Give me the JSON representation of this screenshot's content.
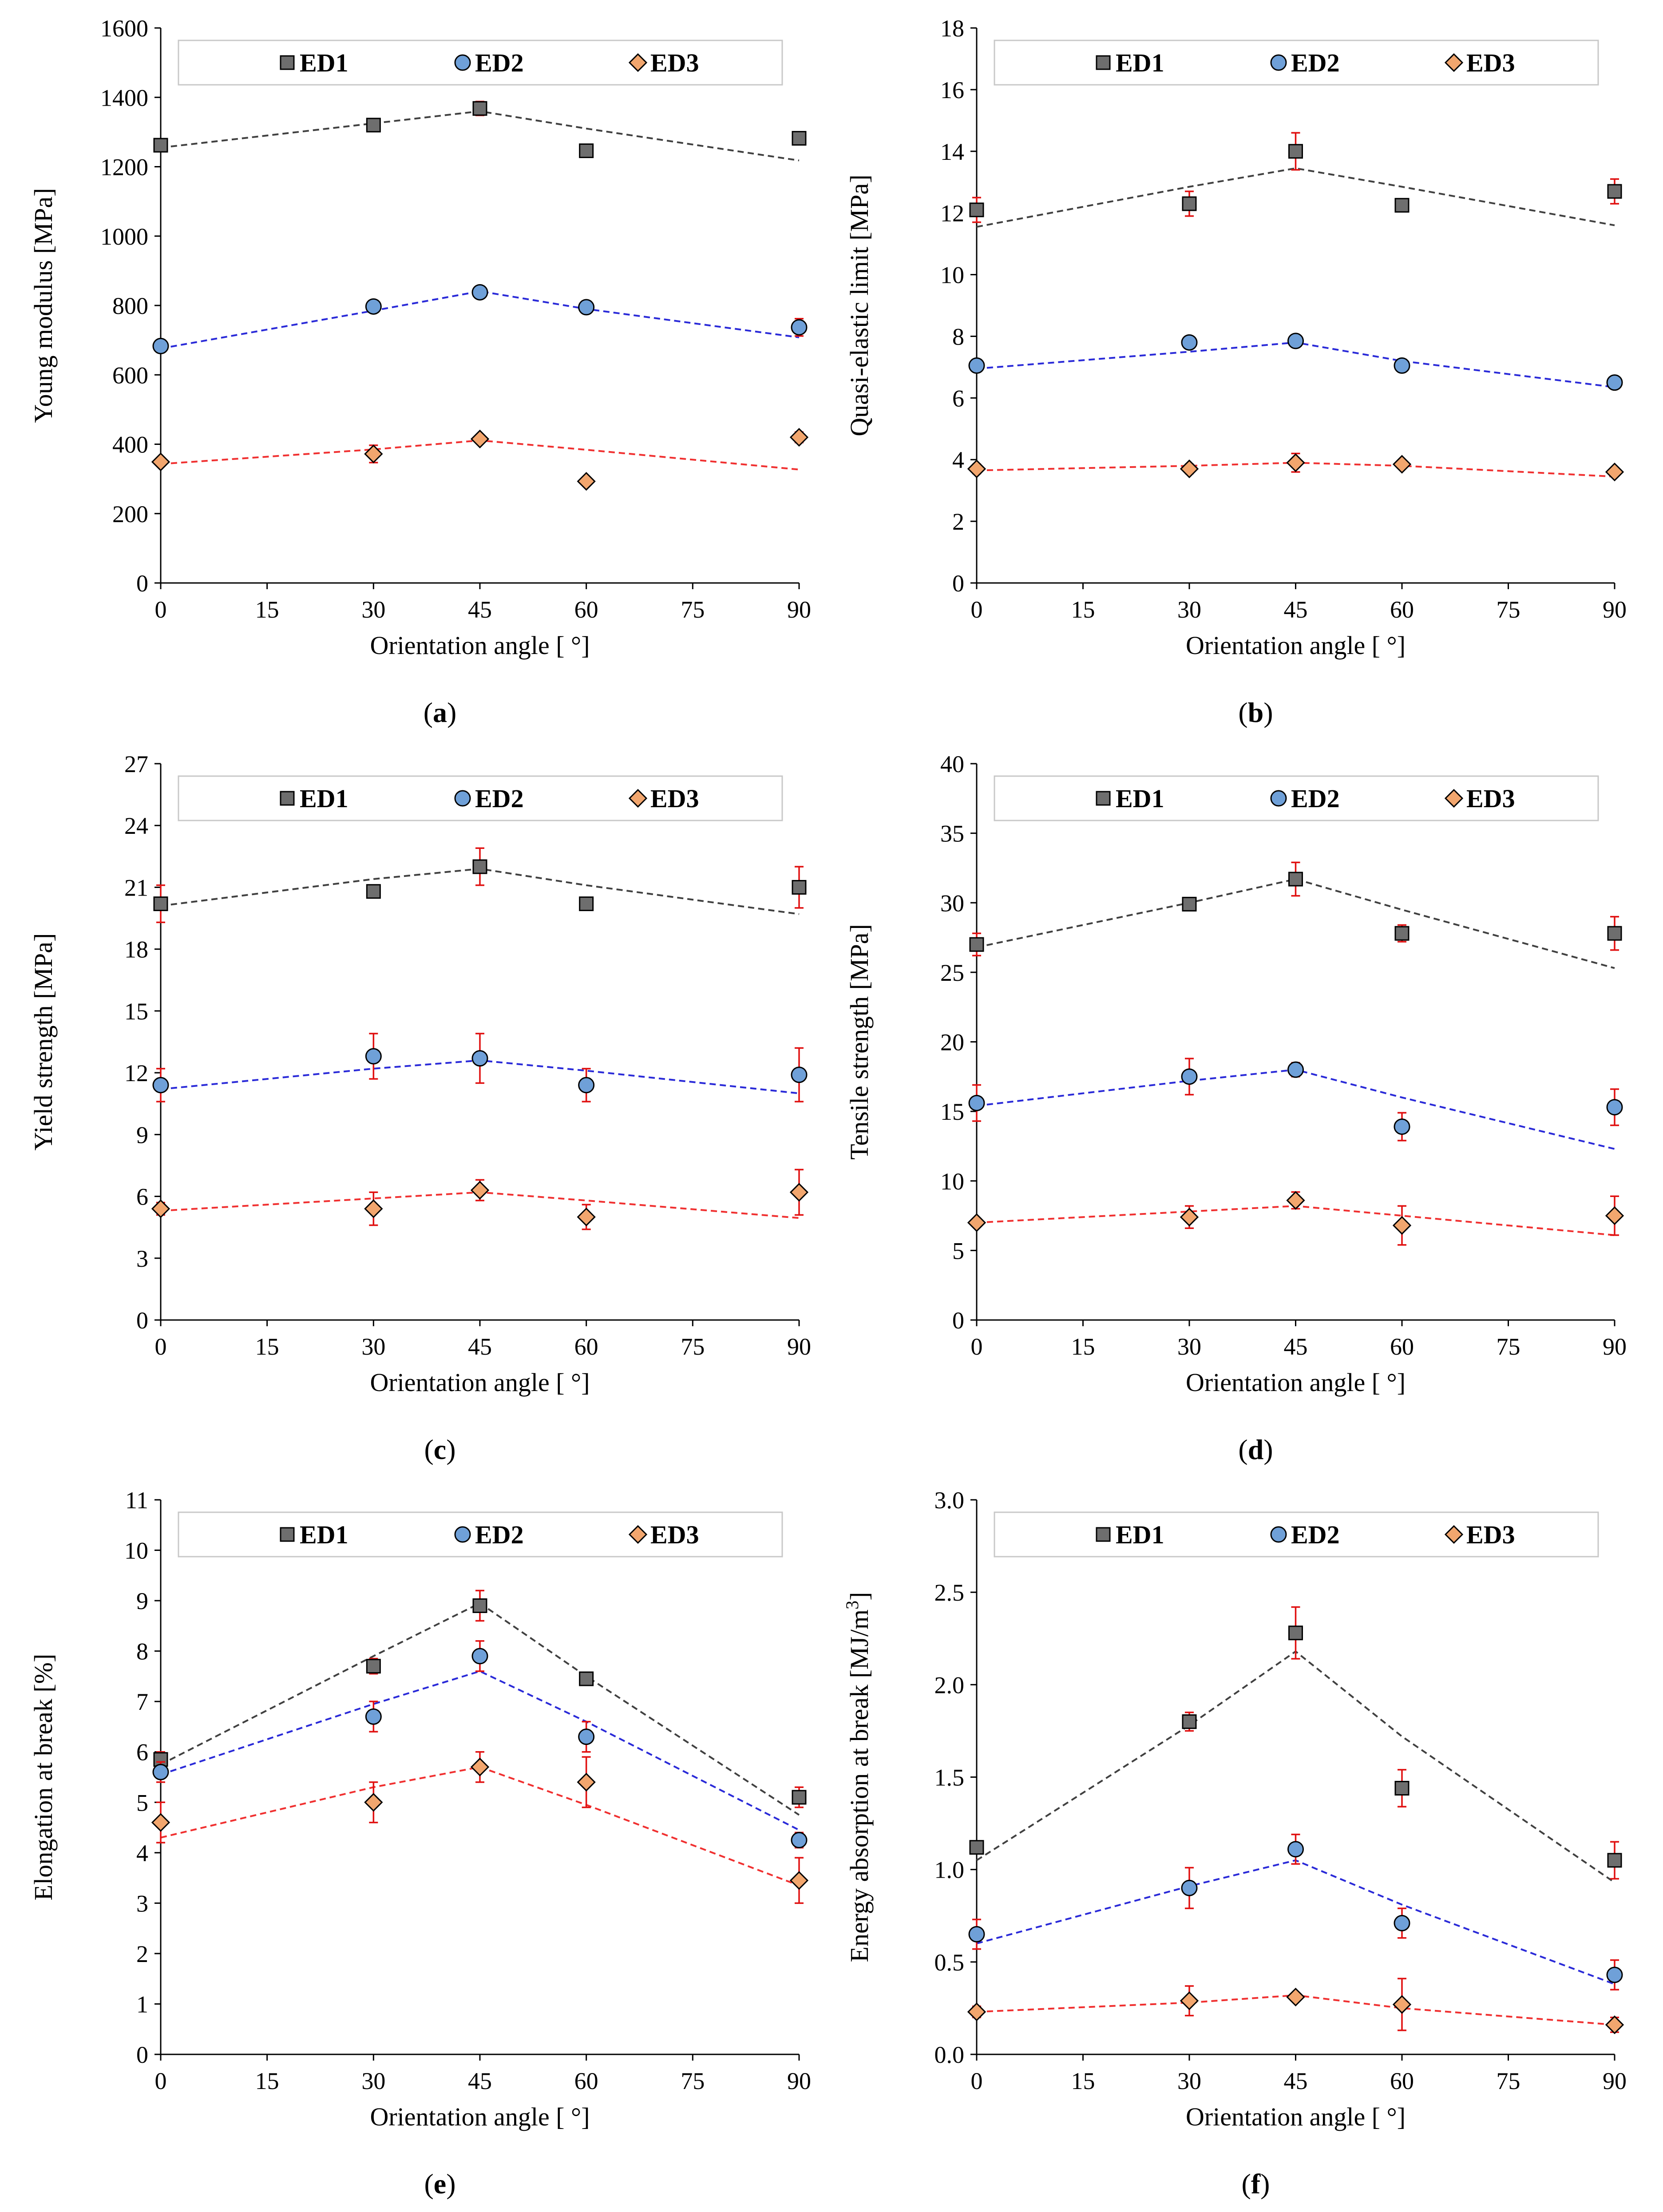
{
  "colors": {
    "ED1": {
      "fill": "#6e6e6e",
      "line": "#404040"
    },
    "ED2": {
      "fill": "#6fa0d8",
      "line": "#2a2ad8"
    },
    "ED3": {
      "fill": "#f2a66e",
      "line": "#f03030"
    },
    "error_bar": "#e01010"
  },
  "chart_data": [
    {
      "id": "a",
      "type": "scatter",
      "caption": "(a)",
      "xlabel": "Orientation angle [ °]",
      "ylabel": "Young modulus [MPa]",
      "xlim": [
        0,
        90
      ],
      "ylim": [
        0,
        1600
      ],
      "xticks": [
        0,
        15,
        30,
        45,
        60,
        75,
        90
      ],
      "yticks": [
        0,
        200,
        400,
        600,
        800,
        1000,
        1200,
        1400,
        1600
      ],
      "ytick_labels": [
        "0",
        "200",
        "400",
        "600",
        "800",
        "1000",
        "1200",
        "1400",
        "1600"
      ],
      "x": [
        0,
        30,
        45,
        60,
        90
      ],
      "series": [
        {
          "name": "ED1",
          "values": [
            1262,
            1320,
            1368,
            1246,
            1282
          ],
          "errors": [
            10,
            15,
            20,
            10,
            12
          ],
          "trend": [
            1255,
            1325,
            1360,
            1310,
            1218
          ]
        },
        {
          "name": "ED2",
          "values": [
            683,
            797,
            838,
            795,
            737
          ],
          "errors": [
            10,
            10,
            15,
            10,
            25
          ],
          "trend": [
            676,
            785,
            841,
            790,
            708
          ]
        },
        {
          "name": "ED3",
          "values": [
            349,
            372,
            415,
            293,
            420
          ],
          "errors": [
            10,
            25,
            10,
            5,
            15
          ],
          "trend": [
            343,
            385,
            411,
            384,
            327
          ]
        }
      ]
    },
    {
      "id": "b",
      "type": "scatter",
      "caption": "(b)",
      "xlabel": "Orientation angle [ °]",
      "ylabel": "Quasi-elastic limit [MPa]",
      "xlim": [
        0,
        90
      ],
      "ylim": [
        0,
        18
      ],
      "xticks": [
        0,
        15,
        30,
        45,
        60,
        75,
        90
      ],
      "yticks": [
        0,
        2,
        4,
        6,
        8,
        10,
        12,
        14,
        16,
        18
      ],
      "ytick_labels": [
        "0",
        "2",
        "4",
        "6",
        "8",
        "10",
        "12",
        "14",
        "16",
        "18"
      ],
      "x": [
        0,
        30,
        45,
        60,
        90
      ],
      "series": [
        {
          "name": "ED1",
          "values": [
            12.1,
            12.3,
            14.0,
            12.25,
            12.7
          ],
          "errors": [
            0.4,
            0.4,
            0.6,
            0.1,
            0.4
          ],
          "trend": [
            11.55,
            12.85,
            13.45,
            12.85,
            11.6
          ]
        },
        {
          "name": "ED2",
          "values": [
            7.05,
            7.8,
            7.85,
            7.05,
            6.5
          ],
          "errors": [
            0.1,
            0.2,
            0.1,
            0.2,
            0.2
          ],
          "trend": [
            6.95,
            7.5,
            7.8,
            7.2,
            6.35
          ]
        },
        {
          "name": "ED3",
          "values": [
            3.7,
            3.7,
            3.9,
            3.85,
            3.6
          ],
          "errors": [
            0.15,
            0.15,
            0.3,
            0.1,
            0.1
          ],
          "trend": [
            3.65,
            3.8,
            3.9,
            3.8,
            3.45
          ]
        }
      ]
    },
    {
      "id": "c",
      "type": "scatter",
      "caption": "(c)",
      "xlabel": "Orientation angle [ °]",
      "ylabel": "Yield strength [MPa]",
      "xlim": [
        0,
        90
      ],
      "ylim": [
        0,
        27
      ],
      "xticks": [
        0,
        15,
        30,
        45,
        60,
        75,
        90
      ],
      "yticks": [
        0,
        3,
        6,
        9,
        12,
        15,
        18,
        21,
        24,
        27
      ],
      "ytick_labels": [
        "0",
        "3",
        "6",
        "9",
        "12",
        "15",
        "18",
        "21",
        "24",
        "27"
      ],
      "x": [
        0,
        30,
        45,
        60,
        90
      ],
      "series": [
        {
          "name": "ED1",
          "values": [
            20.2,
            20.8,
            22.0,
            20.2,
            21.0
          ],
          "errors": [
            0.9,
            0.2,
            0.9,
            0.2,
            1.0
          ],
          "trend": [
            20.1,
            21.4,
            21.9,
            21.1,
            19.7
          ]
        },
        {
          "name": "ED2",
          "values": [
            11.4,
            12.8,
            12.7,
            11.4,
            11.9
          ],
          "errors": [
            0.8,
            1.1,
            1.2,
            0.8,
            1.3
          ],
          "trend": [
            11.2,
            12.2,
            12.6,
            12.1,
            11.0
          ]
        },
        {
          "name": "ED3",
          "values": [
            5.4,
            5.4,
            6.3,
            5.0,
            6.2
          ],
          "errors": [
            0.3,
            0.8,
            0.5,
            0.6,
            1.1
          ],
          "trend": [
            5.3,
            5.9,
            6.2,
            5.8,
            4.95
          ]
        }
      ]
    },
    {
      "id": "d",
      "type": "scatter",
      "caption": "(d)",
      "xlabel": "Orientation angle [ °]",
      "ylabel": "Tensile strength [MPa]",
      "xlim": [
        0,
        90
      ],
      "ylim": [
        0,
        40
      ],
      "xticks": [
        0,
        15,
        30,
        45,
        60,
        75,
        90
      ],
      "yticks": [
        0,
        5,
        10,
        15,
        20,
        25,
        30,
        35,
        40
      ],
      "ytick_labels": [
        "0",
        "5",
        "10",
        "15",
        "20",
        "25",
        "30",
        "35",
        "40"
      ],
      "x": [
        0,
        30,
        45,
        60,
        90
      ],
      "series": [
        {
          "name": "ED1",
          "values": [
            27.0,
            29.9,
            31.7,
            27.8,
            27.8
          ],
          "errors": [
            0.8,
            0.3,
            1.2,
            0.6,
            1.2
          ],
          "trend": [
            26.8,
            30.0,
            31.7,
            29.5,
            25.3
          ]
        },
        {
          "name": "ED2",
          "values": [
            15.6,
            17.5,
            18.0,
            13.9,
            15.3
          ],
          "errors": [
            1.3,
            1.3,
            0.5,
            1.0,
            1.3
          ],
          "trend": [
            15.4,
            17.2,
            18.0,
            16.0,
            12.3
          ]
        },
        {
          "name": "ED3",
          "values": [
            7.0,
            7.4,
            8.6,
            6.8,
            7.5
          ],
          "errors": [
            0.2,
            0.8,
            0.6,
            1.4,
            1.4
          ],
          "trend": [
            7.0,
            7.8,
            8.2,
            7.5,
            6.1
          ]
        }
      ]
    },
    {
      "id": "e",
      "type": "scatter",
      "caption": "(e)",
      "xlabel": "Orientation angle [ °]",
      "ylabel": "Elongation at break [%]",
      "xlim": [
        0,
        90
      ],
      "ylim": [
        0,
        11
      ],
      "xticks": [
        0,
        15,
        30,
        45,
        60,
        75,
        90
      ],
      "yticks": [
        0,
        1,
        2,
        3,
        4,
        5,
        6,
        7,
        8,
        9,
        10,
        11
      ],
      "ytick_labels": [
        "0",
        "1",
        "2",
        "3",
        "4",
        "5",
        "6",
        "7",
        "8",
        "9",
        "10",
        "11"
      ],
      "x": [
        0,
        30,
        45,
        60,
        90
      ],
      "series": [
        {
          "name": "ED1",
          "values": [
            5.85,
            7.7,
            8.9,
            7.45,
            5.1
          ],
          "errors": [
            0.15,
            0.15,
            0.3,
            0.1,
            0.2
          ],
          "trend": [
            5.75,
            7.9,
            8.95,
            7.5,
            4.75
          ]
        },
        {
          "name": "ED2",
          "values": [
            5.6,
            6.7,
            7.9,
            6.3,
            4.25
          ],
          "errors": [
            0.2,
            0.3,
            0.3,
            0.3,
            0.15
          ],
          "trend": [
            5.55,
            6.95,
            7.6,
            6.6,
            4.45
          ]
        },
        {
          "name": "ED3",
          "values": [
            4.6,
            5.0,
            5.7,
            5.4,
            3.45
          ],
          "errors": [
            0.4,
            0.4,
            0.3,
            0.5,
            0.45
          ],
          "trend": [
            4.3,
            5.3,
            5.7,
            4.95,
            3.35
          ]
        }
      ]
    },
    {
      "id": "f",
      "type": "scatter",
      "caption": "(f)",
      "xlabel": "Orientation angle [ °]",
      "ylabel": "Energy absorption at break [MJ/m³]",
      "xlim": [
        0,
        90
      ],
      "ylim": [
        0,
        3.0
      ],
      "xticks": [
        0,
        15,
        30,
        45,
        60,
        75,
        90
      ],
      "yticks": [
        0,
        0.5,
        1.0,
        1.5,
        2.0,
        2.5,
        3.0
      ],
      "ytick_labels": [
        "0.0",
        "0.5",
        "1.0",
        "1.5",
        "2.0",
        "2.5",
        "3.0"
      ],
      "x": [
        0,
        30,
        45,
        60,
        90
      ],
      "series": [
        {
          "name": "ED1",
          "values": [
            1.12,
            1.8,
            2.28,
            1.44,
            1.05
          ],
          "errors": [
            0.03,
            0.05,
            0.14,
            0.1,
            0.1
          ],
          "trend": [
            1.05,
            1.78,
            2.18,
            1.72,
            0.93
          ]
        },
        {
          "name": "ED2",
          "values": [
            0.65,
            0.9,
            1.11,
            0.71,
            0.43
          ],
          "errors": [
            0.08,
            0.11,
            0.08,
            0.08,
            0.08
          ],
          "trend": [
            0.6,
            0.91,
            1.05,
            0.81,
            0.38
          ]
        },
        {
          "name": "ED3",
          "values": [
            0.23,
            0.29,
            0.31,
            0.27,
            0.16
          ],
          "errors": [
            0.03,
            0.08,
            0.02,
            0.14,
            0.04
          ],
          "trend": [
            0.23,
            0.28,
            0.32,
            0.25,
            0.16
          ]
        }
      ]
    }
  ]
}
